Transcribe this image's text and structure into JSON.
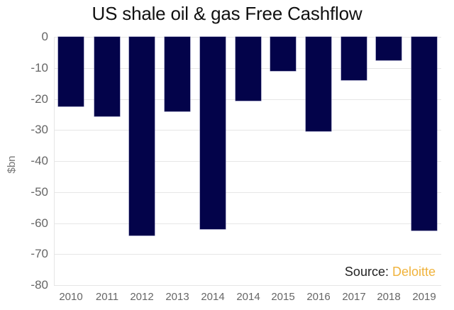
{
  "chart_data": {
    "type": "bar",
    "title": "US shale oil & gas Free Cashflow",
    "xlabel": "",
    "ylabel": "$bn",
    "ylim": [
      -80,
      0
    ],
    "yticks": [
      "0",
      "-10",
      "-20",
      "-30",
      "-40",
      "-50",
      "-60",
      "-70",
      "-80"
    ],
    "grid": true,
    "categories": [
      "2010",
      "2011",
      "2012",
      "2013",
      "2014",
      "2014",
      "2015",
      "2016",
      "2017",
      "2018",
      "2019"
    ],
    "values": [
      -22.5,
      -25.5,
      -64,
      -24,
      -62,
      -20.5,
      -11,
      -30.5,
      -14,
      -7.5,
      -62.5
    ],
    "bar_color": "#03034a",
    "annotation": {
      "prefix": "Source: ",
      "source": "Deloitte",
      "source_color": "#f0b33c"
    }
  }
}
